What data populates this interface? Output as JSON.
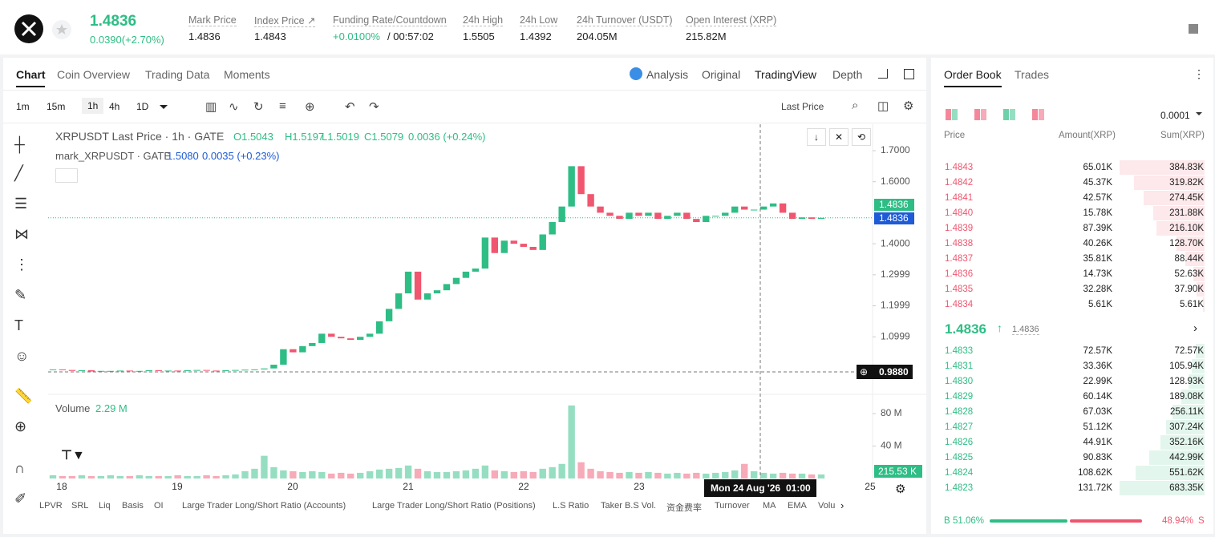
{
  "header": {
    "price": "1.4836",
    "change": "0.0390(+2.70%)",
    "stats": [
      {
        "label": "Mark Price",
        "value": "1.4836"
      },
      {
        "label": "Index Price ↗",
        "value": "1.4843"
      },
      {
        "label": "Funding Rate/Countdown",
        "value": "+0.0100%",
        "extra": "/ 00:57:02"
      },
      {
        "label": "24h High",
        "value": "1.5505"
      },
      {
        "label": "24h Low",
        "value": "1.4392"
      },
      {
        "label": "24h Turnover (USDT)",
        "value": "204.05M"
      },
      {
        "label": "Open Interest (XRP)",
        "value": "215.82M"
      }
    ]
  },
  "tabs": [
    "Chart",
    "Coin Overview",
    "Trading Data",
    "Moments"
  ],
  "views": [
    "Analysis",
    "Original",
    "TradingView",
    "Depth"
  ],
  "intervals": [
    "1m",
    "15m",
    "1h",
    "4h",
    "1D"
  ],
  "price_source": "Last Price",
  "chart_data": {
    "type": "candlestick",
    "legend": {
      "title": "XRPUSDT Last Price · 1h · GATE",
      "ohlc": [
        "O1.5043",
        "H1.5197",
        "L1.5019",
        "C1.5079"
      ],
      "change": "0.0036 (+0.24%)",
      "mark_title": "mark_XRPUSDT · GATE",
      "mark_value": "1.5080",
      "mark_change": "0.0035 (+0.23%)"
    },
    "closes": [
      0.995,
      0.993,
      0.99,
      0.992,
      0.988,
      0.99,
      0.99,
      0.991,
      0.989,
      0.99,
      0.992,
      0.99,
      0.991,
      0.99,
      0.992,
      0.993,
      0.991,
      0.99,
      0.992,
      0.993,
      0.994,
      0.995,
      0.998,
      1.01,
      1.06,
      1.05,
      1.07,
      1.08,
      1.11,
      1.1,
      1.095,
      1.09,
      1.1,
      1.11,
      1.15,
      1.19,
      1.24,
      1.31,
      1.22,
      1.24,
      1.25,
      1.27,
      1.29,
      1.31,
      1.32,
      1.42,
      1.37,
      1.41,
      1.4,
      1.39,
      1.38,
      1.43,
      1.47,
      1.52,
      1.65,
      1.56,
      1.52,
      1.5,
      1.49,
      1.48,
      1.5,
      1.49,
      1.5,
      1.48,
      1.49,
      1.5,
      1.48,
      1.47,
      1.49,
      1.49,
      1.5,
      1.52,
      1.51,
      1.51,
      1.52,
      1.53,
      1.5,
      1.48,
      1.485,
      1.48,
      1.4836
    ],
    "volumes": [
      4,
      3,
      3,
      4,
      3,
      3,
      4,
      3,
      3,
      4,
      3,
      3,
      3,
      4,
      3,
      3,
      4,
      3,
      4,
      5,
      9,
      12,
      28,
      14,
      10,
      9,
      8,
      9,
      8,
      6,
      7,
      6,
      7,
      9,
      11,
      12,
      13,
      16,
      12,
      9,
      8,
      8,
      9,
      10,
      12,
      16,
      10,
      9,
      8,
      9,
      8,
      12,
      14,
      18,
      90,
      20,
      12,
      9,
      8,
      7,
      8,
      7,
      8,
      7,
      6,
      7,
      6,
      7,
      6,
      7,
      8,
      10,
      18,
      9,
      7,
      6,
      7,
      6,
      6,
      5,
      5
    ],
    "ylim": [
      0.9145,
      1.7853
    ],
    "yticks": [
      {
        "value": 1.7,
        "label": "1.7000"
      },
      {
        "value": 1.6,
        "label": "1.6000"
      },
      {
        "value": 1.4,
        "label": "1.4000"
      },
      1.2999,
      1.1999,
      1.0999
    ],
    "last_price": "1.4836",
    "mark_price": "1.4836",
    "cross_price": "0.9880",
    "xlim": [
      17.882,
      25.021
    ],
    "xticks": [
      18,
      19,
      20,
      21,
      22,
      23,
      25
    ],
    "cross_date": "Mon 24 Aug '26",
    "cross_time": "01:00",
    "volume_title": "Volume",
    "volume_value": "2.29 M",
    "volume_tag": "215.53 K",
    "vlim": [
      0,
      103.7
    ],
    "vticks": [
      {
        "value": 80,
        "label": "80 M"
      },
      {
        "value": 40,
        "label": "40 M"
      }
    ],
    "up_color": "#2ebd85",
    "down_color": "#f0566f"
  },
  "indicators": [
    "LPVR",
    "SRL",
    "Liq",
    "Basis",
    "OI",
    "Large Trader Long/Short Ratio (Accounts)",
    "Large Trader Long/Short Ratio (Positions)",
    "L.S Ratio",
    "Taker B.S Vol.",
    "资金费率",
    "Turnover",
    "MA",
    "EMA",
    "Volu"
  ],
  "order_book": {
    "tabs": [
      "Order Book",
      "Trades"
    ],
    "precision": "0.0001",
    "headers": [
      "Price",
      "Amount(XRP)",
      "Sum(XRP)"
    ],
    "asks": [
      [
        "1.4843",
        "65.01K",
        "384.83K"
      ],
      [
        "1.4842",
        "45.37K",
        "319.82K"
      ],
      [
        "1.4841",
        "42.57K",
        "274.45K"
      ],
      [
        "1.4840",
        "15.78K",
        "231.88K"
      ],
      [
        "1.4839",
        "87.39K",
        "216.10K"
      ],
      [
        "1.4838",
        "40.26K",
        "128.70K"
      ],
      [
        "1.4837",
        "35.81K",
        "88.44K"
      ],
      [
        "1.4836",
        "14.73K",
        "52.63K"
      ],
      [
        "1.4835",
        "32.28K",
        "37.90K"
      ],
      [
        "1.4834",
        "5.61K",
        "5.61K"
      ]
    ],
    "mid_price": "1.4836",
    "mid_mark": "1.4836",
    "bids": [
      [
        "1.4833",
        "72.57K",
        "72.57K"
      ],
      [
        "1.4831",
        "33.36K",
        "105.94K"
      ],
      [
        "1.4830",
        "22.99K",
        "128.93K"
      ],
      [
        "1.4829",
        "60.14K",
        "189.08K"
      ],
      [
        "1.4828",
        "67.03K",
        "256.11K"
      ],
      [
        "1.4827",
        "51.12K",
        "307.24K"
      ],
      [
        "1.4826",
        "44.91K",
        "352.16K"
      ],
      [
        "1.4825",
        "90.83K",
        "442.99K"
      ],
      [
        "1.4824",
        "108.62K",
        "551.62K"
      ],
      [
        "1.4823",
        "131.72K",
        "683.35K"
      ]
    ],
    "buy_label": "B",
    "buy_ratio": "51.06%",
    "sell_ratio": "48.94%",
    "sell_label": "S"
  }
}
